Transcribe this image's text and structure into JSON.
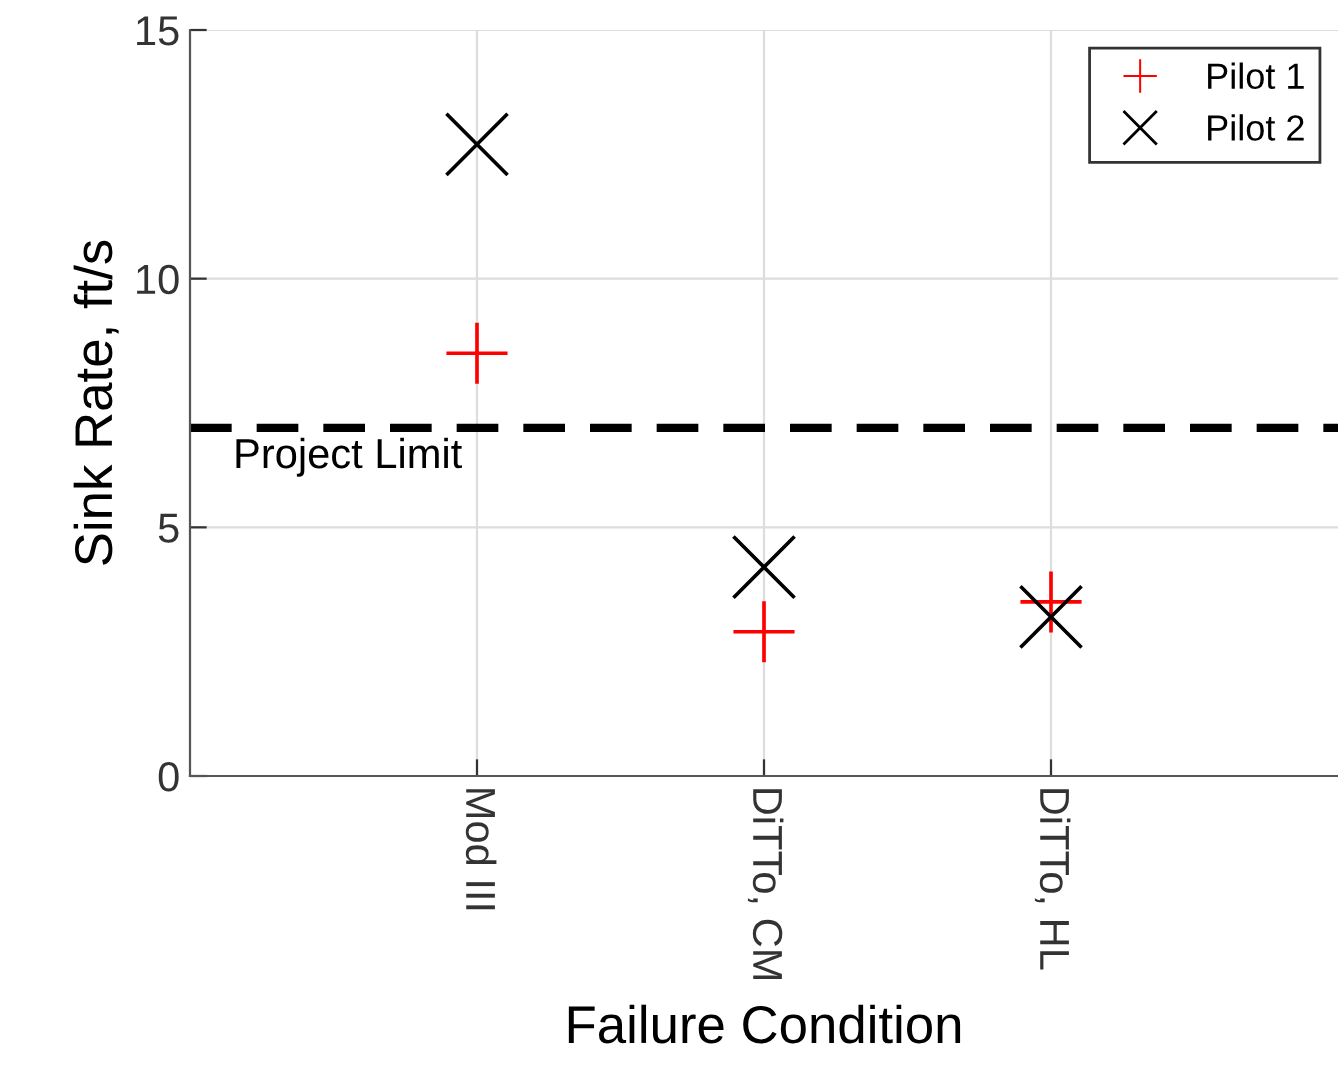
{
  "chart_data": {
    "type": "scatter",
    "xlabel": "Failure Condition",
    "ylabel": "Sink Rate, ft/s",
    "categories": [
      "Mod III",
      "DiTTo, CM",
      "DiTTo, HL"
    ],
    "series": [
      {
        "name": "Pilot 1",
        "color": "#ff0000",
        "marker": "cross",
        "values": [
          8.5,
          2.9,
          3.5
        ]
      },
      {
        "name": "Pilot 2",
        "color": "#000000",
        "values": [
          12.7,
          4.2,
          3.2
        ]
      }
    ],
    "ylim": [
      0,
      15
    ],
    "yticks": [
      0,
      5,
      10,
      15
    ],
    "grid": true,
    "legend": "top right",
    "ref_lines": [
      {
        "axis": "y",
        "value": 7,
        "label": "Project Limit",
        "color": "#000000",
        "line_style": "dashed"
      }
    ]
  }
}
